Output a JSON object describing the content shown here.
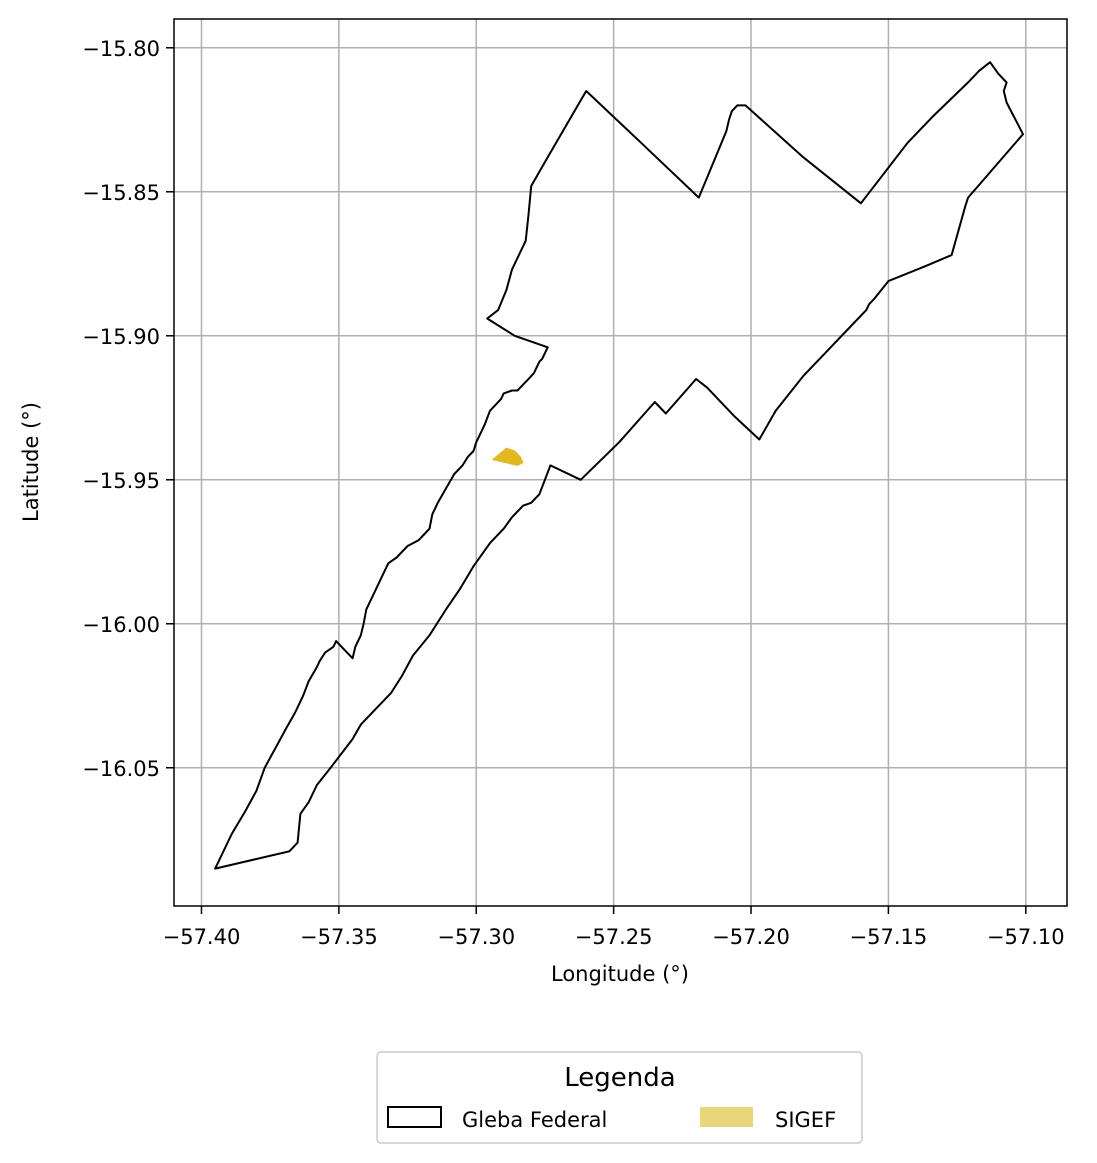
{
  "chart_data": {
    "type": "map",
    "xlabel": "Longitude (°)",
    "ylabel": "Latitude (°)",
    "xlim": [
      -57.41,
      -57.085
    ],
    "ylim": [
      -16.098,
      -15.79
    ],
    "grid": true,
    "x_ticks": [
      -57.4,
      -57.35,
      -57.3,
      -57.25,
      -57.2,
      -57.15,
      -57.1
    ],
    "x_tick_labels": [
      "−57.40",
      "−57.35",
      "−57.30",
      "−57.25",
      "−57.20",
      "−57.15",
      "−57.10"
    ],
    "y_ticks": [
      -15.8,
      -15.85,
      -15.9,
      -15.95,
      -16.0,
      -16.05
    ],
    "y_tick_labels": [
      "−15.80",
      "−15.85",
      "−15.90",
      "−15.95",
      "−16.00",
      "−16.05"
    ],
    "legend": {
      "title": "Legenda",
      "placement": "bottom-center",
      "entries": [
        {
          "label": "Gleba Federal",
          "style": "outline",
          "color": "#000000"
        },
        {
          "label": "SIGEF",
          "style": "fill",
          "color": "#ead67a"
        }
      ]
    },
    "layers": [
      {
        "name": "Gleba Federal",
        "style": "outline",
        "stroke": "#000000",
        "coordinates": [
          [
            -57.395,
            -16.085
          ],
          [
            -57.368,
            -16.079
          ],
          [
            -57.365,
            -16.076
          ],
          [
            -57.364,
            -16.066
          ],
          [
            -57.361,
            -16.062
          ],
          [
            -57.358,
            -16.056
          ],
          [
            -57.353,
            -16.05
          ],
          [
            -57.349,
            -16.045
          ],
          [
            -57.345,
            -16.04
          ],
          [
            -57.342,
            -16.035
          ],
          [
            -57.336,
            -16.029
          ],
          [
            -57.331,
            -16.024
          ],
          [
            -57.327,
            -16.018
          ],
          [
            -57.323,
            -16.011
          ],
          [
            -57.317,
            -16.004
          ],
          [
            -57.311,
            -15.995
          ],
          [
            -57.306,
            -15.988
          ],
          [
            -57.301,
            -15.98
          ],
          [
            -57.295,
            -15.972
          ],
          [
            -57.29,
            -15.967
          ],
          [
            -57.287,
            -15.963
          ],
          [
            -57.285,
            -15.961
          ],
          [
            -57.283,
            -15.959
          ],
          [
            -57.28,
            -15.958
          ],
          [
            -57.277,
            -15.955
          ],
          [
            -57.273,
            -15.945
          ],
          [
            -57.262,
            -15.95
          ],
          [
            -57.248,
            -15.937
          ],
          [
            -57.235,
            -15.923
          ],
          [
            -57.231,
            -15.927
          ],
          [
            -57.22,
            -15.915
          ],
          [
            -57.216,
            -15.918
          ],
          [
            -57.206,
            -15.928
          ],
          [
            -57.197,
            -15.936
          ],
          [
            -57.191,
            -15.926
          ],
          [
            -57.181,
            -15.914
          ],
          [
            -57.173,
            -15.906
          ],
          [
            -57.165,
            -15.898
          ],
          [
            -57.158,
            -15.891
          ],
          [
            -57.157,
            -15.889
          ],
          [
            -57.155,
            -15.887
          ],
          [
            -57.15,
            -15.881
          ],
          [
            -57.137,
            -15.876
          ],
          [
            -57.127,
            -15.872
          ],
          [
            -57.122,
            -15.855
          ],
          [
            -57.121,
            -15.852
          ],
          [
            -57.101,
            -15.83
          ],
          [
            -57.107,
            -15.819
          ],
          [
            -57.108,
            -15.815
          ],
          [
            -57.107,
            -15.812
          ],
          [
            -57.11,
            -15.809
          ],
          [
            -57.113,
            -15.805
          ],
          [
            -57.117,
            -15.808
          ],
          [
            -57.121,
            -15.812
          ],
          [
            -57.134,
            -15.824
          ],
          [
            -57.143,
            -15.833
          ],
          [
            -57.16,
            -15.854
          ],
          [
            -57.181,
            -15.838
          ],
          [
            -57.202,
            -15.82
          ],
          [
            -57.205,
            -15.82
          ],
          [
            -57.207,
            -15.822
          ],
          [
            -57.208,
            -15.825
          ],
          [
            -57.209,
            -15.829
          ],
          [
            -57.219,
            -15.852
          ],
          [
            -57.24,
            -15.833
          ],
          [
            -57.26,
            -15.815
          ],
          [
            -57.274,
            -15.838
          ],
          [
            -57.28,
            -15.848
          ],
          [
            -57.281,
            -15.858
          ],
          [
            -57.282,
            -15.867
          ],
          [
            -57.284,
            -15.871
          ],
          [
            -57.287,
            -15.877
          ],
          [
            -57.289,
            -15.884
          ],
          [
            -57.292,
            -15.891
          ],
          [
            -57.296,
            -15.894
          ],
          [
            -57.286,
            -15.9
          ],
          [
            -57.274,
            -15.904
          ],
          [
            -57.276,
            -15.908
          ],
          [
            -57.277,
            -15.909
          ],
          [
            -57.279,
            -15.913
          ],
          [
            -57.281,
            -15.915
          ],
          [
            -57.283,
            -15.917
          ],
          [
            -57.285,
            -15.919
          ],
          [
            -57.287,
            -15.919
          ],
          [
            -57.29,
            -15.92
          ],
          [
            -57.291,
            -15.922
          ],
          [
            -57.293,
            -15.924
          ],
          [
            -57.295,
            -15.926
          ],
          [
            -57.297,
            -15.931
          ],
          [
            -57.299,
            -15.935
          ],
          [
            -57.3,
            -15.937
          ],
          [
            -57.301,
            -15.94
          ],
          [
            -57.303,
            -15.942
          ],
          [
            -57.305,
            -15.945
          ],
          [
            -57.308,
            -15.948
          ],
          [
            -57.311,
            -15.953
          ],
          [
            -57.314,
            -15.958
          ],
          [
            -57.316,
            -15.962
          ],
          [
            -57.317,
            -15.967
          ],
          [
            -57.319,
            -15.969
          ],
          [
            -57.321,
            -15.971
          ],
          [
            -57.325,
            -15.973
          ],
          [
            -57.329,
            -15.977
          ],
          [
            -57.332,
            -15.979
          ],
          [
            -57.334,
            -15.983
          ],
          [
            -57.337,
            -15.989
          ],
          [
            -57.34,
            -15.995
          ],
          [
            -57.341,
            -16.0
          ],
          [
            -57.342,
            -16.004
          ],
          [
            -57.344,
            -16.008
          ],
          [
            -57.345,
            -16.012
          ],
          [
            -57.351,
            -16.006
          ],
          [
            -57.352,
            -16.008
          ],
          [
            -57.355,
            -16.01
          ],
          [
            -57.357,
            -16.013
          ],
          [
            -57.358,
            -16.015
          ],
          [
            -57.361,
            -16.02
          ],
          [
            -57.363,
            -16.025
          ],
          [
            -57.366,
            -16.031
          ],
          [
            -57.369,
            -16.036
          ],
          [
            -57.373,
            -16.043
          ],
          [
            -57.377,
            -16.05
          ],
          [
            -57.38,
            -16.058
          ],
          [
            -57.384,
            -16.065
          ],
          [
            -57.389,
            -16.073
          ],
          [
            -57.395,
            -16.085
          ]
        ]
      },
      {
        "name": "SIGEF",
        "style": "fill",
        "fill": "#e0b820",
        "coordinates": [
          [
            -57.294,
            -15.943
          ],
          [
            -57.289,
            -15.939
          ],
          [
            -57.286,
            -15.94
          ],
          [
            -57.284,
            -15.942
          ],
          [
            -57.283,
            -15.944
          ],
          [
            -57.285,
            -15.945
          ],
          [
            -57.294,
            -15.943
          ]
        ]
      }
    ]
  }
}
